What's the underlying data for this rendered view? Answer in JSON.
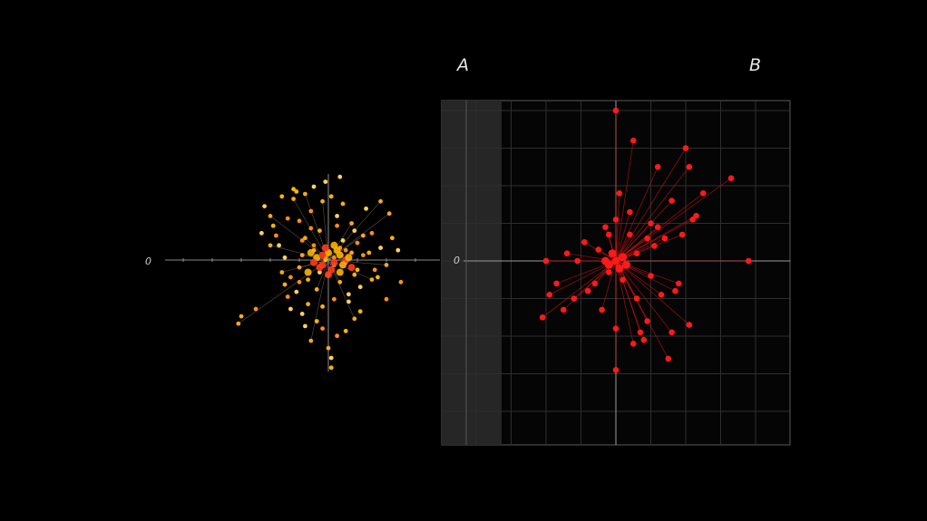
{
  "chart_data": [
    {
      "type": "scatter",
      "panel_label": "A",
      "origin_label": "0",
      "xlim": [
        -6,
        4
      ],
      "ylim": [
        -5,
        4
      ],
      "grid": false,
      "colors": {
        "points": [
          "#f5a623",
          "#ffb400",
          "#ff8c1a",
          "#ffd060"
        ],
        "core": "#ff3b1f",
        "axes": "#8a8a8a",
        "rays": "#c7b28a"
      },
      "x": [
        -3.1,
        -3.0,
        -2.5,
        -2.2,
        -2.0,
        -1.9,
        -1.8,
        -1.7,
        -1.6,
        -1.5,
        -1.4,
        -1.3,
        -1.2,
        -1.1,
        -1.0,
        -0.9,
        -0.8,
        -0.7,
        -0.6,
        -0.5,
        -0.4,
        -0.3,
        -0.2,
        -0.1,
        0.0,
        0.1,
        0.2,
        0.3,
        0.4,
        0.5,
        0.6,
        0.7,
        0.8,
        0.9,
        1.0,
        1.1,
        1.2,
        1.4,
        1.6,
        1.8,
        2.0,
        2.2,
        2.5,
        2.4,
        2.1,
        1.7,
        1.5,
        1.3,
        0.9,
        0.6,
        0.3,
        0.1,
        -0.2,
        -0.4,
        -0.6,
        -0.8,
        -1.0,
        -1.2,
        -1.4,
        -1.1,
        -0.9,
        -0.7,
        -0.5,
        -0.3,
        -0.1,
        0.2,
        0.4,
        0.6,
        0.8,
        1.0,
        1.2,
        0.5,
        0.0,
        -0.5,
        -1.0,
        -1.5,
        -2.0,
        -0.2,
        0.3,
        0.7,
        -0.8,
        1.1,
        -1.3,
        0.9,
        -0.6,
        0.1,
        -0.9,
        0.4,
        1.5,
        -1.6,
        2.0,
        -2.3,
        1.8,
        -0.1,
        0.2
      ],
      "y": [
        -2.6,
        -2.3,
        -2.0,
        2.2,
        1.8,
        1.4,
        1.0,
        0.6,
        -0.5,
        -1.0,
        -1.5,
        -2.0,
        2.5,
        2.8,
        1.6,
        -2.2,
        0.9,
        -1.8,
        2.0,
        3.0,
        -1.2,
        1.2,
        -2.8,
        3.2,
        -3.6,
        2.6,
        -1.6,
        1.8,
        -0.9,
        2.3,
        0.4,
        -1.4,
        1.5,
        -0.6,
        0.7,
        -1.1,
        1.0,
        0.3,
        -0.4,
        0.5,
        -0.2,
        0.9,
        -0.9,
        0.4,
        1.9,
        -0.7,
        1.1,
        2.1,
        -2.4,
        -2.9,
        -3.1,
        -4.0,
        2.4,
        -2.5,
        1.3,
        -2.7,
        -0.3,
        2.9,
        1.7,
        -1.3,
        0.2,
        -0.8,
        0.6,
        -0.5,
        0.1,
        -0.2,
        0.5,
        -0.1,
        0.3,
        -0.4,
        0.2,
        0.8,
        -0.6,
        0.4,
        -0.9,
        0.1,
        0.6,
        -1.9,
        1.4,
        -1.7,
        2.7,
        -2.1,
        -0.7,
        1.2,
        -3.3,
        -4.4,
        0.8,
        3.4,
        -0.8,
        2.6,
        -1.6,
        1.1,
        2.4,
        0.0,
        0.1
      ],
      "core_x": [
        -0.4,
        -0.2,
        0.0,
        0.2,
        0.4,
        0.6,
        -0.6,
        0.1,
        0.3,
        -0.3,
        0.5,
        -0.1,
        0.7,
        -0.5,
        0.2,
        0.8,
        -0.7,
        0.0,
        0.4,
        -0.2
      ],
      "core_y": [
        0.1,
        -0.2,
        0.3,
        -0.1,
        0.2,
        0.0,
        0.3,
        -0.4,
        0.4,
        -0.3,
        -0.2,
        0.5,
        0.1,
        -0.1,
        0.6,
        -0.3,
        -0.5,
        -0.6,
        -0.5,
        0.2
      ]
    },
    {
      "type": "scatter",
      "panel_label": "B",
      "origin_label": "0",
      "xlim": [
        -5,
        4.6
      ],
      "ylim": [
        -4.5,
        4.4
      ],
      "grid": true,
      "colors": {
        "points": "#ff1a1a",
        "rays": "#c41212",
        "grid": "#2e2e2e",
        "axes": "#9a9a9a",
        "band": "#2a2a2a"
      },
      "x": [
        0.0,
        0.5,
        1.2,
        2.1,
        2.0,
        3.3,
        2.5,
        0.1,
        0.4,
        1.6,
        1.0,
        2.2,
        1.9,
        0.0,
        0.9,
        1.4,
        -0.2,
        -0.9,
        -1.1,
        -2.0,
        -1.9,
        -1.5,
        -2.1,
        -1.2,
        -0.6,
        -0.2,
        0.2,
        0.6,
        1.3,
        1.8,
        1.6,
        0.7,
        0.5,
        1.5,
        2.1,
        0.0,
        0.0,
        0.8,
        -0.4,
        -0.8,
        1.0,
        0.3,
        -0.5,
        1.1,
        0.6,
        -1.4,
        -1.7,
        1.7,
        2.3,
        3.8,
        -2.0,
        1.2,
        0.9,
        -0.3,
        0.4
      ],
      "y": [
        4.0,
        3.2,
        2.5,
        2.5,
        3.0,
        2.2,
        1.8,
        1.8,
        1.3,
        1.6,
        1.0,
        1.1,
        0.7,
        1.1,
        0.6,
        0.6,
        0.7,
        0.5,
        0.0,
        0.0,
        -0.9,
        -1.3,
        -1.5,
        -1.0,
        -0.6,
        -0.3,
        -0.5,
        -1.0,
        -0.9,
        -0.6,
        -1.9,
        -1.9,
        -2.2,
        -2.6,
        -1.7,
        -1.8,
        -2.9,
        -2.1,
        -1.3,
        -0.8,
        -0.4,
        -0.1,
        0.3,
        0.4,
        0.2,
        0.2,
        -0.6,
        -0.8,
        1.2,
        0.0,
        0.0,
        0.9,
        -1.6,
        0.9,
        0.7
      ]
    }
  ]
}
